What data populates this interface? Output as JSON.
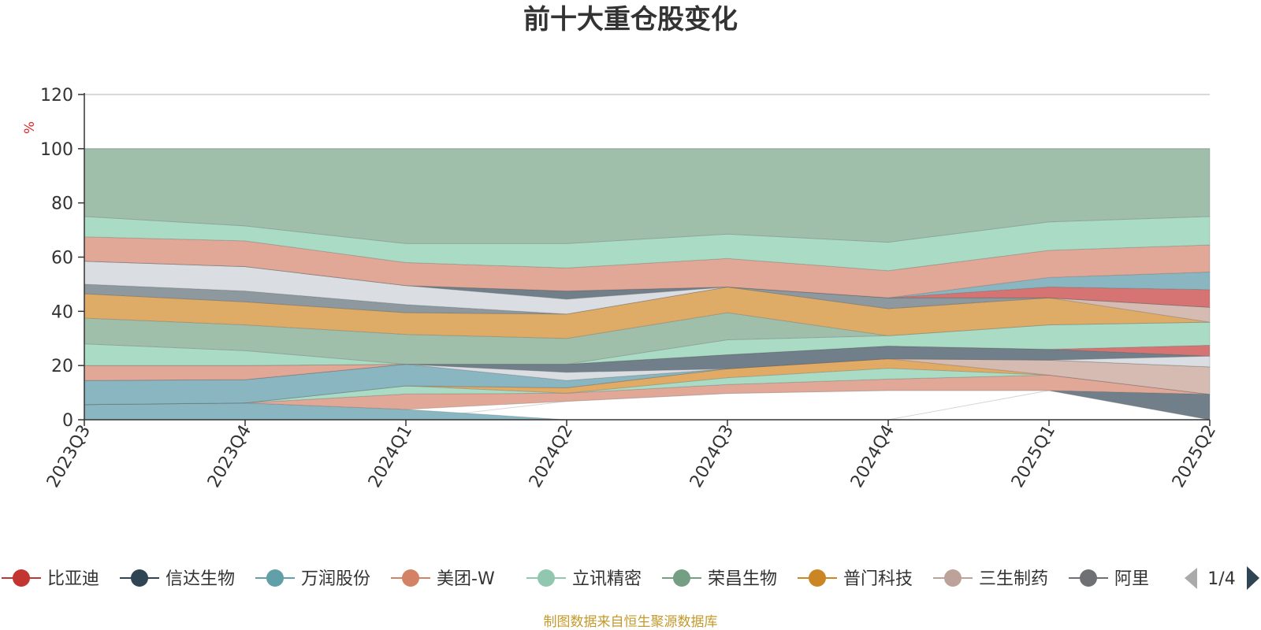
{
  "chart_data": {
    "type": "area",
    "title": "前十大重仓股变化",
    "ylabel": "%",
    "ylim": [
      0,
      120
    ],
    "yticks": [
      0,
      20,
      40,
      60,
      80,
      100,
      120
    ],
    "grid": true,
    "legend_position": "bottom",
    "categories": [
      "2023Q3",
      "2023Q4",
      "2024Q1",
      "2024Q2",
      "2024Q3",
      "2024Q4",
      "2025Q1",
      "2025Q2"
    ],
    "layers": [
      {
        "color": "#d46f6e",
        "lower": [
          0,
          0,
          0,
          6.8,
          9.7,
          10.8,
          10.8,
          0
        ],
        "upper": [
          0,
          0,
          0,
          6.8,
          9.7,
          10.8,
          10.8,
          0
        ]
      },
      {
        "color": "#85b4be",
        "lower": [
          0,
          0,
          0,
          0,
          0,
          0,
          0,
          0
        ],
        "upper": [
          5.6,
          6.2,
          3.8,
          0,
          0,
          0,
          0,
          0
        ]
      },
      {
        "color": "#6b7b85",
        "lower": [
          0,
          0,
          0,
          0,
          0,
          0,
          10.8,
          0
        ],
        "upper": [
          0,
          0,
          0,
          0,
          0,
          0,
          10.8,
          9.4
        ]
      },
      {
        "color": "#e0a494",
        "lower": [
          5.6,
          6.2,
          3.8,
          6.8,
          9.7,
          10.8,
          10.8,
          9.4
        ],
        "upper": [
          5.6,
          6.2,
          9.5,
          9.8,
          13.0,
          15.0,
          16.5,
          9.4
        ]
      },
      {
        "color": "#a7dbc3",
        "lower": [
          5.6,
          6.2,
          9.5,
          9.8,
          13.0,
          15.0,
          16.5,
          9.4
        ],
        "upper": [
          5.6,
          6.2,
          12.5,
          9.8,
          15.5,
          19.0,
          16.5,
          9.4
        ]
      },
      {
        "color": "#e0a860",
        "lower": [
          5.6,
          6.2,
          12.5,
          9.8,
          15.5,
          19.0,
          16.5,
          9.4
        ],
        "upper": [
          5.6,
          6.2,
          12.5,
          11.8,
          18.8,
          22.5,
          16.5,
          9.4
        ]
      },
      {
        "color": "#d4b9ae",
        "lower": [
          5.6,
          6.2,
          12.5,
          11.8,
          18.8,
          22.5,
          16.5,
          9.4
        ],
        "upper": [
          5.6,
          6.2,
          12.5,
          11.8,
          18.8,
          22.5,
          22.0,
          19.5
        ]
      },
      {
        "color": "#85b4be",
        "lower": [
          5.6,
          6.2,
          12.5,
          11.8,
          18.8,
          22.5,
          22.0,
          19.5
        ],
        "upper": [
          14.5,
          14.8,
          20.5,
          14.5,
          18.8,
          22.5,
          22.0,
          19.5
        ]
      },
      {
        "color": "#d9dde2",
        "lower": [
          14.5,
          14.8,
          20.5,
          14.5,
          18.8,
          22.5,
          22.0,
          19.5
        ],
        "upper": [
          14.5,
          14.8,
          20.5,
          17.5,
          18.8,
          22.5,
          22.0,
          23.5
        ]
      },
      {
        "color": "#6b7b85",
        "lower": [
          14.5,
          14.8,
          20.5,
          17.5,
          18.8,
          22.5,
          22.0,
          23.5
        ],
        "upper": [
          14.5,
          14.8,
          20.5,
          20.5,
          24.0,
          27.2,
          26.0,
          23.5
        ]
      },
      {
        "color": "#e0a494",
        "lower": [
          14.5,
          14.8,
          20.5,
          20.5,
          24.0,
          27.2,
          26.0,
          23.5
        ],
        "upper": [
          20.0,
          20.0,
          20.5,
          20.5,
          24.0,
          27.2,
          26.0,
          23.5
        ]
      },
      {
        "color": "#d46f6e",
        "lower": [
          20.0,
          20.0,
          20.5,
          20.5,
          24.0,
          27.2,
          26.0,
          23.5
        ],
        "upper": [
          20.0,
          20.0,
          20.5,
          20.5,
          24.0,
          27.2,
          26.0,
          27.5
        ]
      },
      {
        "color": "#a7dbc3",
        "lower": [
          20.0,
          20.0,
          20.5,
          20.5,
          24.0,
          27.2,
          26.0,
          27.5
        ],
        "upper": [
          28.0,
          25.5,
          20.5,
          20.5,
          29.5,
          31.0,
          35.0,
          36.0
        ]
      },
      {
        "color": "#9dbda8",
        "lower": [
          28.0,
          25.5,
          20.5,
          20.5,
          29.5,
          31.0,
          35.0,
          36.0
        ],
        "upper": [
          37.5,
          35.0,
          31.5,
          30.0,
          39.5,
          31.0,
          35.0,
          36.0
        ]
      },
      {
        "color": "#dda961",
        "lower": [
          37.5,
          35.0,
          31.5,
          30.0,
          39.5,
          31.0,
          35.0,
          36.0
        ],
        "upper": [
          46.5,
          43.5,
          39.5,
          39.0,
          49.0,
          41.0,
          45.0,
          36.0
        ]
      },
      {
        "color": "#d4b9ae",
        "lower": [
          46.5,
          43.5,
          39.5,
          39.0,
          49.0,
          41.0,
          45.0,
          36.0
        ],
        "upper": [
          46.5,
          43.5,
          39.5,
          39.0,
          49.0,
          41.0,
          45.0,
          41.5
        ]
      },
      {
        "color": "#8a969c",
        "lower": [
          46.5,
          43.5,
          39.5,
          39.0,
          49.0,
          41.0,
          45.0,
          41.5
        ],
        "upper": [
          50.0,
          47.5,
          42.5,
          39.0,
          49.0,
          45.0,
          45.0,
          41.5
        ]
      },
      {
        "color": "#d9dde2",
        "lower": [
          50.0,
          47.5,
          42.5,
          39.0,
          49.0,
          45.0,
          45.0,
          41.5
        ],
        "upper": [
          58.5,
          56.5,
          49.5,
          44.5,
          49.0,
          45.0,
          45.0,
          41.5
        ]
      },
      {
        "color": "#6b7b85",
        "lower": [
          58.5,
          56.5,
          49.5,
          44.5,
          49.0,
          45.0,
          45.0,
          41.5
        ],
        "upper": [
          58.5,
          56.5,
          49.5,
          47.5,
          49.0,
          45.0,
          45.0,
          41.5
        ]
      },
      {
        "color": "#d46f6e",
        "lower": [
          58.5,
          56.5,
          49.5,
          47.5,
          49.0,
          45.0,
          45.0,
          41.5
        ],
        "upper": [
          58.5,
          56.5,
          49.5,
          47.5,
          49.0,
          45.0,
          49.0,
          48.0
        ]
      },
      {
        "color": "#85b4be",
        "lower": [
          58.5,
          56.5,
          49.5,
          47.5,
          49.0,
          45.0,
          49.0,
          48.0
        ],
        "upper": [
          58.5,
          56.5,
          49.5,
          47.5,
          49.0,
          45.0,
          52.5,
          54.5
        ]
      },
      {
        "color": "#e0a494",
        "lower": [
          58.5,
          56.5,
          49.5,
          47.5,
          49.0,
          45.0,
          52.5,
          54.5
        ],
        "upper": [
          67.5,
          66.0,
          58.0,
          56.0,
          59.5,
          55.0,
          62.5,
          64.5
        ]
      },
      {
        "color": "#a7dbc3",
        "lower": [
          67.5,
          66.0,
          58.0,
          56.0,
          59.5,
          55.0,
          62.5,
          64.5
        ],
        "upper": [
          75.0,
          71.5,
          65.0,
          65.0,
          68.5,
          65.5,
          73.0,
          75.0
        ]
      },
      {
        "color": "#9dbda8",
        "lower": [
          75.0,
          71.5,
          65.0,
          65.0,
          68.5,
          65.5,
          73.0,
          75.0
        ],
        "upper": [
          100,
          100,
          100,
          100,
          100,
          100,
          100,
          100
        ]
      }
    ],
    "legend": [
      {
        "name": "比亚迪",
        "color": "#c23531"
      },
      {
        "name": "信达生物",
        "color": "#2f4554"
      },
      {
        "name": "万润股份",
        "color": "#61a0a8"
      },
      {
        "name": "美团-W",
        "color": "#d48265"
      },
      {
        "name": "立讯精密",
        "color": "#91c7ae"
      },
      {
        "name": "荣昌生物",
        "color": "#749f83"
      },
      {
        "name": "普门科技",
        "color": "#ca8622"
      },
      {
        "name": "三生制药",
        "color": "#bda29a"
      },
      {
        "name": "阿里",
        "color": "#6e7074"
      }
    ],
    "legend_page": "1/4"
  },
  "footer": "制图数据来自恒生聚源数据库"
}
